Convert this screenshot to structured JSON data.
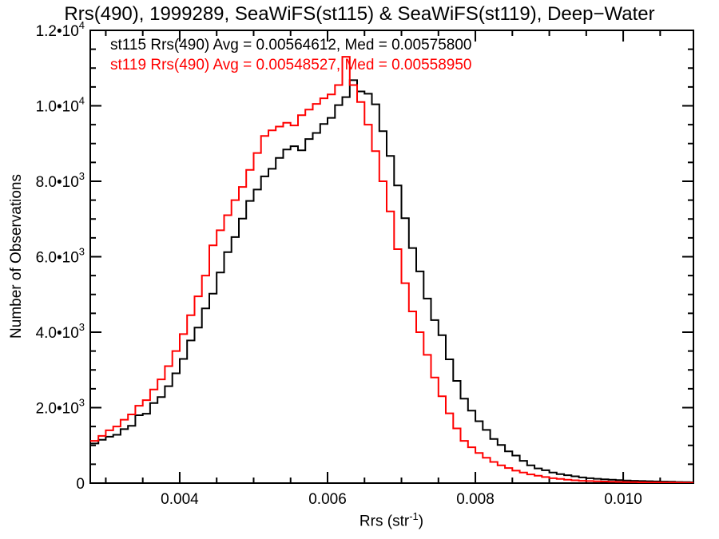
{
  "title": "Rrs(490), 1999289, SeaWiFS(st115) & SeaWiFS(st119), Deep−Water",
  "legend": {
    "st115": "st115 Rrs(490) Avg = 0.00564612, Med = 0.00575800",
    "st119": "st119 Rrs(490) Avg = 0.00548527, Med = 0.00558950"
  },
  "axes": {
    "ylabel": "Number of Observations",
    "xlabel_pre": "Rrs (str",
    "xlabel_sup": "-1",
    "xlabel_post": ")"
  },
  "colors": {
    "st115": "#000000",
    "st119": "#ff0000",
    "axis": "#000000",
    "background": "#ffffff"
  },
  "chart_data": {
    "type": "line",
    "subtype": "step-histogram",
    "title": "Rrs(490), 1999289, SeaWiFS(st115) & SeaWiFS(st119), Deep−Water",
    "xlabel": "Rrs (str^-1)",
    "ylabel": "Number of Observations",
    "xlim": [
      0.00279,
      0.01095
    ],
    "ylim": [
      0,
      12000
    ],
    "grid": false,
    "legend_position": "top-left-inside",
    "x_ticks": [
      {
        "v": 0.004,
        "label": "0.004"
      },
      {
        "v": 0.006,
        "label": "0.006"
      },
      {
        "v": 0.008,
        "label": "0.008"
      },
      {
        "v": 0.01,
        "label": "0.010"
      }
    ],
    "x_minor_start": 0.003,
    "x_minor_step": 0.0005,
    "y_ticks": [
      {
        "v": 0,
        "label": "0",
        "exp": ""
      },
      {
        "v": 2000,
        "label": "2.0•10",
        "exp": "3"
      },
      {
        "v": 4000,
        "label": "4.0•10",
        "exp": "3"
      },
      {
        "v": 6000,
        "label": "6.0•10",
        "exp": "3"
      },
      {
        "v": 8000,
        "label": "8.0•10",
        "exp": "3"
      },
      {
        "v": 10000,
        "label": "1.0•10",
        "exp": "4"
      },
      {
        "v": 12000,
        "label": "1.2•10",
        "exp": "4"
      }
    ],
    "y_minor_step": 500,
    "bin_start": 0.0028,
    "bin_width": 0.0001,
    "series": [
      {
        "name": "st115",
        "color": "#000000",
        "stats": {
          "avg": 0.00564612,
          "med": 0.005758
        },
        "values": [
          1050,
          1150,
          1230,
          1280,
          1430,
          1520,
          1800,
          1840,
          2120,
          2280,
          2570,
          2910,
          3290,
          3780,
          4120,
          4630,
          5020,
          5580,
          6120,
          6520,
          7010,
          7480,
          7780,
          8130,
          8330,
          8620,
          8840,
          8930,
          8820,
          9120,
          9280,
          9520,
          9680,
          10020,
          10230,
          10680,
          10380,
          10320,
          10040,
          9330,
          8670,
          7890,
          7020,
          6230,
          5610,
          4890,
          4320,
          3920,
          3280,
          2710,
          2240,
          1920,
          1640,
          1410,
          1170,
          1010,
          840,
          730,
          590,
          470,
          390,
          340,
          280,
          240,
          210,
          180,
          150,
          130,
          115,
          100,
          90,
          80,
          70,
          62,
          55,
          50,
          45,
          40,
          35,
          30,
          26,
          22,
          20
        ]
      },
      {
        "name": "st119",
        "color": "#ff0000",
        "stats": {
          "avg": 0.00548527,
          "med": 0.0055895
        },
        "values": [
          1120,
          1250,
          1400,
          1500,
          1680,
          1820,
          2050,
          2200,
          2480,
          2750,
          3100,
          3500,
          3950,
          4450,
          4950,
          5500,
          6300,
          6700,
          7100,
          7500,
          7850,
          8300,
          8750,
          9200,
          9350,
          9450,
          9550,
          9480,
          9750,
          9900,
          10050,
          10200,
          10300,
          10550,
          11300,
          10550,
          10100,
          9500,
          8800,
          8000,
          7200,
          6200,
          5300,
          4550,
          4000,
          3400,
          2800,
          2300,
          1850,
          1450,
          1120,
          950,
          800,
          670,
          560,
          470,
          400,
          330,
          280,
          230,
          195,
          160,
          130,
          110,
          90,
          75,
          62,
          55,
          48,
          42,
          36,
          32,
          28,
          25,
          22,
          20,
          18,
          16,
          14,
          12,
          10,
          9,
          8
        ]
      }
    ]
  }
}
